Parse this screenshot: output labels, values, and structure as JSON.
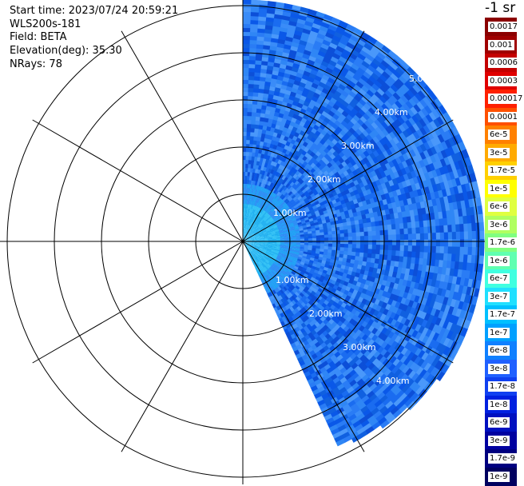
{
  "header": {
    "start_time": "Start time: 2023/07/24 20:59:21",
    "instrument": "WLS200s-181",
    "field": "Field: BETA",
    "elevation": "Elevation(deg): 35.30",
    "nrays": "NRays: 78"
  },
  "colorbar": {
    "units": "-1 sr",
    "labels": [
      "0.0017",
      "0.001",
      "0.0006",
      "0.0003",
      "0.00017",
      "0.0001",
      "6e-5",
      "3e-5",
      "1.7e-5",
      "1e-5",
      "6e-6",
      "3e-6",
      "1.7e-6",
      "1e-6",
      "6e-7",
      "3e-7",
      "1.7e-7",
      "1e-7",
      "6e-8",
      "3e-8",
      "1.7e-8",
      "1e-8",
      "6e-9",
      "3e-9",
      "1.7e-9",
      "1e-9"
    ],
    "colors": [
      "#8b0000",
      "#a00000",
      "#c40000",
      "#e00000",
      "#ff2000",
      "#ff5000",
      "#ff8000",
      "#ffaa00",
      "#ffd000",
      "#ffff00",
      "#e0ff40",
      "#b0ff60",
      "#80ff80",
      "#60ffb0",
      "#40ffe0",
      "#20e0ff",
      "#00c0ff",
      "#00a0ff",
      "#1080ff",
      "#2060ff",
      "#1040f0",
      "#0020e0",
      "#0010c0",
      "#0000a0",
      "#000080",
      "#000060"
    ]
  },
  "range_labels": [
    "1.00km",
    "2.00km",
    "3.00km",
    "4.00km",
    "5.0"
  ]
}
